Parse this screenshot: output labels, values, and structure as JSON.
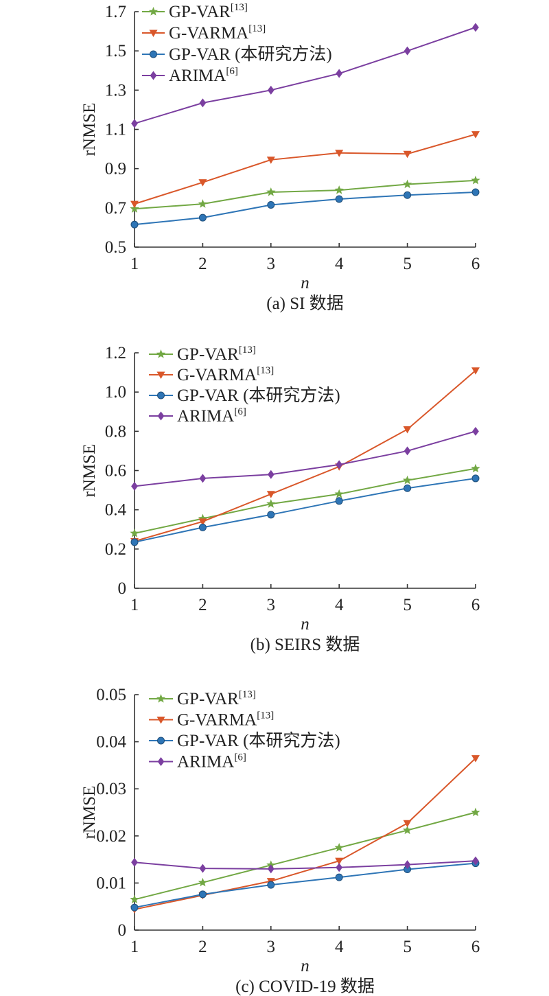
{
  "colors": {
    "green": "#72a844",
    "orange": "#d9572a",
    "blue": "#2e75b6",
    "purple": "#7b3fa0"
  },
  "legend": [
    {
      "base": "GP-VAR",
      "sup": "[13]",
      "marker": "star",
      "color": "#72a844"
    },
    {
      "base": "G-VARMA",
      "sup": "[13]",
      "marker": "triangle-down",
      "color": "#d9572a"
    },
    {
      "base": "GP-VAR (本研究方法)",
      "sup": "",
      "marker": "circle",
      "color": "#2e75b6"
    },
    {
      "base": "ARIMA",
      "sup": "[6]",
      "marker": "diamond",
      "color": "#7b3fa0"
    }
  ],
  "chart_data": [
    {
      "type": "line",
      "caption": "(a) SI 数据",
      "xlabel": "n",
      "ylabel": "rNMSE",
      "x": [
        1,
        2,
        3,
        4,
        5,
        6
      ],
      "ylim": [
        0.5,
        1.7
      ],
      "yticks": [
        "0.5",
        "0.7",
        "0.9",
        "1.1",
        "1.3",
        "1.5",
        "1.7"
      ],
      "grid": false,
      "legend_position": "top-left",
      "series": [
        {
          "name": "GP-VAR[13]",
          "values": [
            0.695,
            0.72,
            0.78,
            0.79,
            0.82,
            0.84
          ]
        },
        {
          "name": "G-VARMA[13]",
          "values": [
            0.72,
            0.83,
            0.945,
            0.98,
            0.975,
            1.075
          ]
        },
        {
          "name": "GP-VAR (本研究方法)",
          "values": [
            0.615,
            0.65,
            0.715,
            0.745,
            0.765,
            0.78
          ]
        },
        {
          "name": "ARIMA[6]",
          "values": [
            1.13,
            1.235,
            1.3,
            1.385,
            1.5,
            1.62
          ]
        }
      ]
    },
    {
      "type": "line",
      "caption": "(b) SEIRS 数据",
      "xlabel": "n",
      "ylabel": "rNMSE",
      "x": [
        1,
        2,
        3,
        4,
        5,
        6
      ],
      "ylim": [
        0,
        1.2
      ],
      "yticks": [
        "0",
        "0.2",
        "0.4",
        "0.6",
        "0.8",
        "1.0",
        "1.2"
      ],
      "grid": false,
      "legend_position": "top-left",
      "series": [
        {
          "name": "GP-VAR[13]",
          "values": [
            0.28,
            0.355,
            0.43,
            0.48,
            0.55,
            0.61
          ]
        },
        {
          "name": "G-VARMA[13]",
          "values": [
            0.24,
            0.34,
            0.48,
            0.62,
            0.81,
            1.11
          ]
        },
        {
          "name": "GP-VAR (本研究方法)",
          "values": [
            0.235,
            0.31,
            0.375,
            0.445,
            0.51,
            0.56
          ]
        },
        {
          "name": "ARIMA[6]",
          "values": [
            0.52,
            0.56,
            0.58,
            0.63,
            0.7,
            0.8
          ]
        }
      ]
    },
    {
      "type": "line",
      "caption": "(c) COVID-19 数据",
      "xlabel": "n",
      "ylabel": "rNMSE",
      "x": [
        1,
        2,
        3,
        4,
        5,
        6
      ],
      "ylim": [
        0,
        0.05
      ],
      "yticks": [
        "0",
        "0.01",
        "0.02",
        "0.03",
        "0.04",
        "0.05"
      ],
      "grid": false,
      "legend_position": "top-left",
      "series": [
        {
          "name": "GP-VAR[13]",
          "values": [
            0.0065,
            0.0101,
            0.0138,
            0.0175,
            0.0212,
            0.025
          ]
        },
        {
          "name": "G-VARMA[13]",
          "values": [
            0.0044,
            0.0074,
            0.0104,
            0.0147,
            0.0227,
            0.0365
          ]
        },
        {
          "name": "GP-VAR (本研究方法)",
          "values": [
            0.0048,
            0.0076,
            0.0096,
            0.0112,
            0.0129,
            0.0142
          ]
        },
        {
          "name": "ARIMA[6]",
          "values": [
            0.0144,
            0.0131,
            0.013,
            0.0133,
            0.0139,
            0.0147
          ]
        }
      ]
    }
  ]
}
